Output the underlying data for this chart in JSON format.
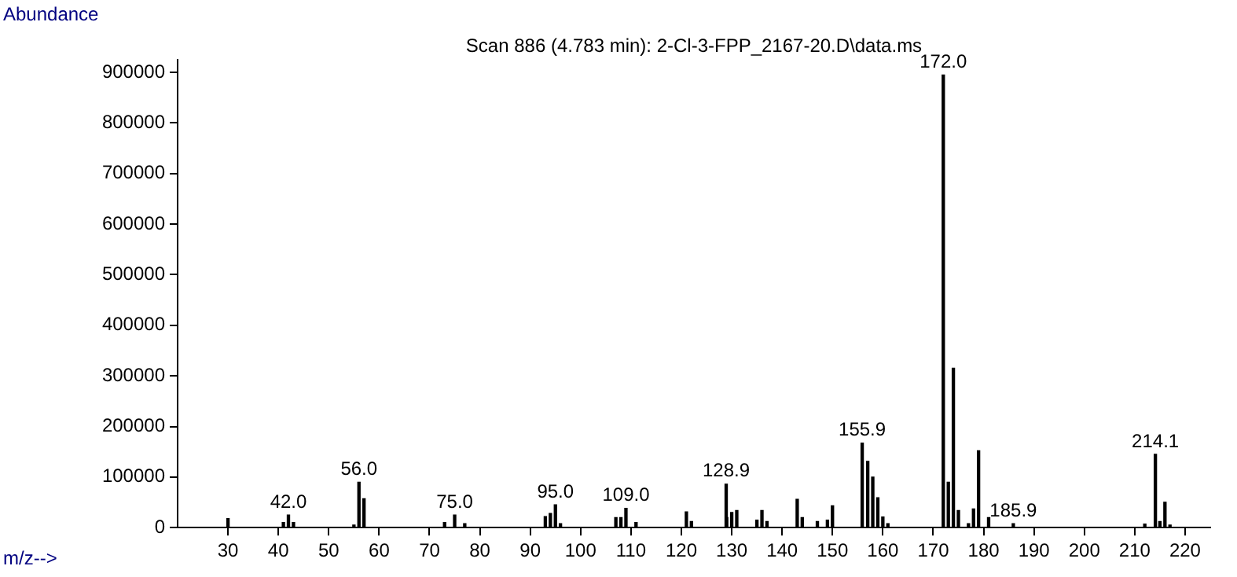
{
  "chart_data": {
    "type": "bar",
    "title": "Scan 886 (4.783 min): 2-Cl-3-FPP_2167-20.D\\data.ms",
    "xlabel": "m/z-->",
    "ylabel": "Abundance",
    "x": [
      30,
      41,
      42,
      43,
      55,
      56,
      57,
      73,
      75,
      77,
      93,
      94,
      95,
      96,
      107,
      108,
      109,
      111,
      121,
      122,
      128.9,
      129,
      130,
      131,
      135,
      136,
      137,
      143,
      144,
      147,
      149,
      150,
      155.9,
      157,
      158,
      159,
      160,
      161,
      172,
      173,
      174,
      175,
      177,
      178,
      179,
      181,
      185.9,
      212,
      214.1,
      215,
      216,
      217
    ],
    "values": [
      18000,
      10000,
      25000,
      10000,
      5000,
      90000,
      57000,
      10000,
      25000,
      8000,
      22000,
      28000,
      45000,
      8000,
      20000,
      20000,
      38000,
      10000,
      31000,
      12000,
      86000,
      20000,
      30000,
      34000,
      15000,
      34000,
      12000,
      56000,
      20000,
      12000,
      15000,
      43000,
      167000,
      131000,
      100000,
      59000,
      21000,
      8000,
      895000,
      90000,
      315000,
      34000,
      8000,
      37000,
      152000,
      20000,
      8000,
      7000,
      145000,
      12000,
      50000,
      5000
    ],
    "annotations": [
      {
        "text": "42.0",
        "x": 42,
        "y": 25000
      },
      {
        "text": "56.0",
        "x": 56,
        "y": 90000
      },
      {
        "text": "75.0",
        "x": 75,
        "y": 25000
      },
      {
        "text": "95.0",
        "x": 95,
        "y": 45000
      },
      {
        "text": "109.0",
        "x": 109,
        "y": 38000
      },
      {
        "text": "128.9",
        "x": 128.9,
        "y": 86000
      },
      {
        "text": "155.9",
        "x": 155.9,
        "y": 167000
      },
      {
        "text": "172.0",
        "x": 172,
        "y": 895000
      },
      {
        "text": "185.9",
        "x": 185.9,
        "y": 8000
      },
      {
        "text": "214.1",
        "x": 214.1,
        "y": 145000
      }
    ],
    "color": "#000000",
    "xlim": [
      20,
      225
    ],
    "xticks": [
      30,
      40,
      50,
      60,
      70,
      80,
      90,
      100,
      110,
      120,
      130,
      140,
      150,
      160,
      170,
      180,
      190,
      200,
      210,
      220
    ],
    "ylim": [
      0,
      925000
    ],
    "yticks": [
      0,
      100000,
      200000,
      300000,
      400000,
      500000,
      600000,
      700000,
      800000,
      900000
    ],
    "grid": false,
    "legend": false
  }
}
